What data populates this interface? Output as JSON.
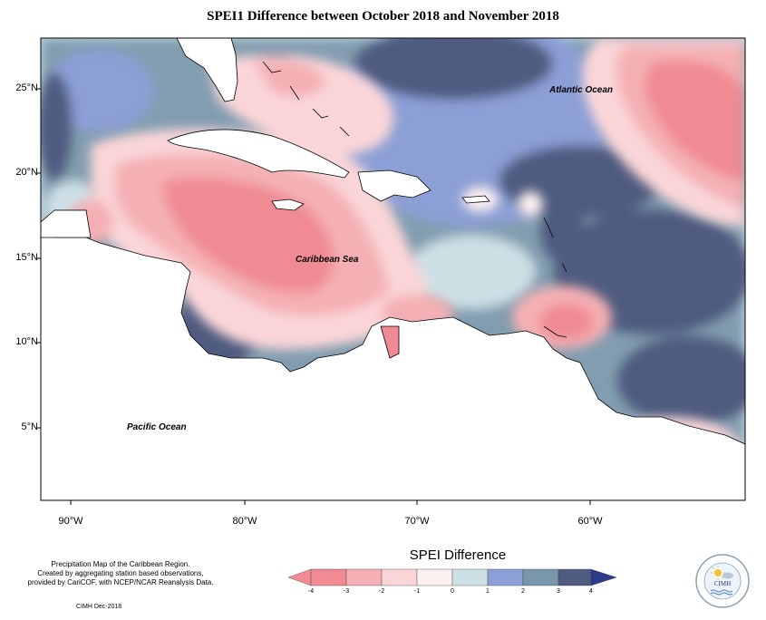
{
  "title": "SPEI1 Difference between October 2018 and November 2018",
  "y_axis_labels": [
    "25°N",
    "20°N",
    "15°N",
    "10°N",
    "5°N"
  ],
  "x_axis_labels": [
    "90°W",
    "80°W",
    "70°W",
    "60°W"
  ],
  "ocean_labels": {
    "atlantic": "Atlantic Ocean",
    "caribbean": "Caribbean Sea",
    "pacific": "Pacific Ocean"
  },
  "footer": {
    "description_lines": [
      "Precipitation Map of the Caribbean Region.",
      "Created by aggregating station based observations,",
      "provided by CariCOF, with NCEP/NCAR Reanalysis Data."
    ],
    "credit": "CIMH Dec-2018"
  },
  "legend": {
    "title": "SPEI Difference",
    "ticks": [
      "-4",
      "-3",
      "-2",
      "-1",
      "0",
      "1",
      "2",
      "3",
      "4"
    ],
    "colors": [
      "#f08a93",
      "#f4b0b4",
      "#fad6d8",
      "#fdf0f0",
      "#cde0e6",
      "#8c9fd6",
      "#7a96aa",
      "#4f5b80"
    ]
  },
  "logo": {
    "text": "CIMH"
  }
}
